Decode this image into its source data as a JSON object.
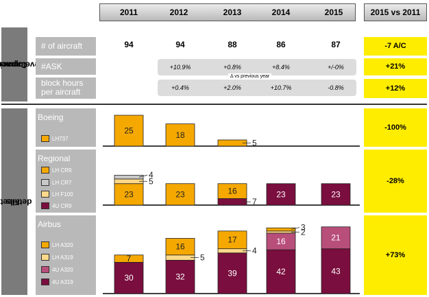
{
  "colors": {
    "lh737": "#f5a800",
    "lh_cr9": "#f5a800",
    "lh_cr7": "#c8c8c8",
    "lh_f100": "#ffd98a",
    "u4_cr9": "#7a0e3e",
    "lh_a320": "#f5a800",
    "lh_a319": "#ffd98a",
    "u4_a320": "#b84e7a",
    "u4_a319": "#7a0e3e",
    "highlight": "#ffed00",
    "panel": "#b9b9b9"
  },
  "header": {
    "years": [
      "2011",
      "2012",
      "2013",
      "2014",
      "2015"
    ],
    "comparison": "2015 vs 2011"
  },
  "capacity": {
    "section_label": "Capacity development",
    "section_label_line1": "Capacity",
    "section_label_line2": "development",
    "rows": [
      {
        "label": "# of aircraft",
        "values": [
          "94",
          "94",
          "88",
          "86",
          "87"
        ],
        "change": "-7 A/C"
      },
      {
        "label": "#ASK",
        "values": [
          "",
          "+10.9%",
          "+0.8%",
          "+8.4%",
          "+/-0%"
        ],
        "change": "+21%"
      },
      {
        "label_line1": "block hours",
        "label_line2": "per aircraft",
        "values": [
          "",
          "+0.4%",
          "+2.0%",
          "+10.7%",
          "-0.8%"
        ],
        "change": "+12%"
      }
    ],
    "note": "Δ vs previous year"
  },
  "fleet": {
    "section_label_line1": "Fleet",
    "section_label_line2": "details"
  },
  "chart_data": [
    {
      "type": "bar",
      "stacked": true,
      "title": "Boeing",
      "categories": [
        "2011",
        "2012",
        "2013",
        "2014",
        "2015"
      ],
      "series": [
        {
          "name": "LH737",
          "values": [
            25,
            18,
            5,
            0,
            0
          ]
        }
      ],
      "change": "-100%"
    },
    {
      "type": "bar",
      "stacked": true,
      "title": "Regional",
      "categories": [
        "2011",
        "2012",
        "2013",
        "2014",
        "2015"
      ],
      "series": [
        {
          "name": "4U CR9",
          "values": [
            0,
            0,
            7,
            23,
            23
          ]
        },
        {
          "name": "LH CR9",
          "values": [
            23,
            23,
            16,
            0,
            0
          ]
        },
        {
          "name": "LH F100",
          "values": [
            5,
            0,
            0,
            0,
            0
          ]
        },
        {
          "name": "LH CR7",
          "values": [
            4,
            0,
            0,
            0,
            0
          ]
        }
      ],
      "change": "-28%"
    },
    {
      "type": "bar",
      "stacked": true,
      "title": "Airbus",
      "categories": [
        "2011",
        "2012",
        "2013",
        "2014",
        "2015"
      ],
      "series": [
        {
          "name": "4U A319",
          "values": [
            30,
            32,
            39,
            42,
            43
          ]
        },
        {
          "name": "4U A320",
          "values": [
            0,
            0,
            0,
            16,
            21
          ]
        },
        {
          "name": "LH A319",
          "values": [
            0,
            5,
            4,
            2,
            0
          ]
        },
        {
          "name": "LH A320",
          "values": [
            7,
            16,
            17,
            3,
            0
          ]
        }
      ],
      "change": "+73%"
    }
  ]
}
